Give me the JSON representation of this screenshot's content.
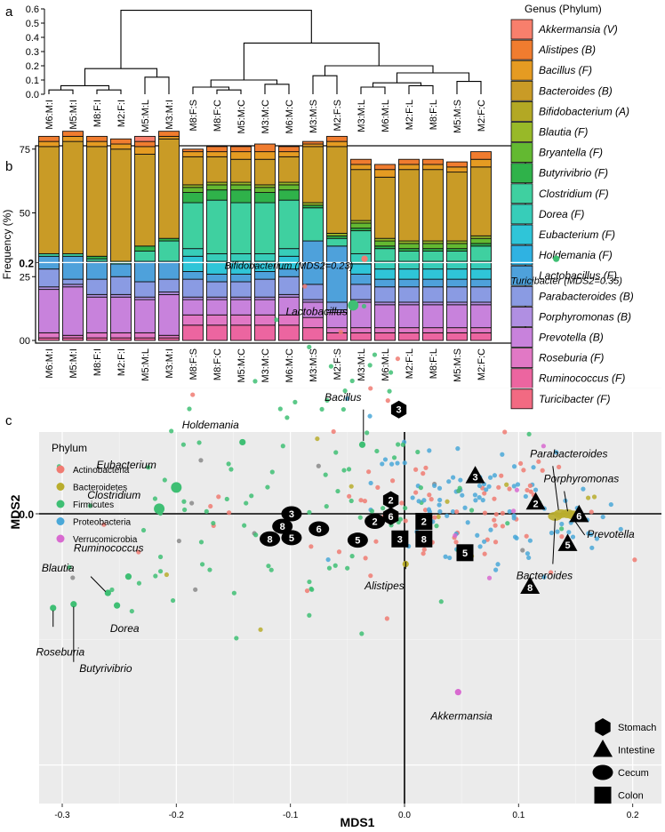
{
  "panel_labels": {
    "a": "a",
    "b": "b",
    "c": "c"
  },
  "chart_data": [
    {
      "type": "dendrogram",
      "panel": "a",
      "ylim": [
        0,
        0.6
      ],
      "yticks": [
        "0.0",
        "0.1",
        "0.2",
        "0.3",
        "0.4",
        "0.5",
        "0.6"
      ],
      "leaves": [
        "M6:M:I",
        "M5:M:I",
        "M8:F:I",
        "M2:F:I",
        "M5:M:L",
        "M3:M:I",
        "M8:F:S",
        "M8:F:C",
        "M5:M:C",
        "M3:M:C",
        "M6:M:C",
        "M3:M:S",
        "M2:F:S",
        "M3:M:L",
        "M6:M:L",
        "M2:F:L",
        "M8:F:L",
        "M5:M:S",
        "M2:F:C"
      ]
    },
    {
      "type": "bar",
      "stacked": true,
      "panel": "b",
      "ylabel": "Frequency (%)",
      "ylim": [
        0,
        80
      ],
      "yticks": [
        "00",
        "25",
        "50",
        "75"
      ],
      "categories": [
        "M6:M:I",
        "M5:M:I",
        "M8:F:I",
        "M2:F:I",
        "M5:M:L",
        "M3:M:I",
        "M8:F:S",
        "M8:F:C",
        "M5:M:C",
        "M3:M:C",
        "M6:M:C",
        "M3:M:S",
        "M2:F:S",
        "M3:M:L",
        "M6:M:L",
        "M2:F:L",
        "M8:F:L",
        "M5:M:S",
        "M2:F:C"
      ],
      "series": [
        {
          "name": "Turicibacter (F)",
          "values": [
            0,
            0,
            0,
            0,
            0,
            0,
            0,
            0,
            0,
            0,
            0,
            0,
            0,
            0,
            0,
            0,
            0,
            0,
            0
          ]
        },
        {
          "name": "Ruminococcus (F)",
          "values": [
            1,
            1,
            1,
            1,
            1,
            1,
            6,
            6,
            6,
            6,
            6,
            5,
            3,
            3,
            3,
            3,
            3,
            3,
            3
          ]
        },
        {
          "name": "Roseburia (F)",
          "values": [
            2,
            1,
            2,
            2,
            2,
            1,
            4,
            4,
            4,
            4,
            4,
            4,
            2,
            2,
            2,
            2,
            2,
            2,
            2
          ]
        },
        {
          "name": "Prevotella (B)",
          "values": [
            17,
            19,
            14,
            14,
            13,
            16,
            6,
            6,
            6,
            6,
            7,
            6,
            6,
            10,
            9,
            9,
            9,
            9,
            9
          ]
        },
        {
          "name": "Porphyromonas (B)",
          "values": [
            1,
            1,
            1,
            1,
            1,
            1,
            1,
            1,
            1,
            1,
            1,
            1,
            1,
            1,
            1,
            1,
            1,
            1,
            1
          ]
        },
        {
          "name": "Parabacteroides (B)",
          "values": [
            7,
            2,
            6,
            7,
            6,
            5,
            7,
            6,
            6,
            7,
            7,
            6,
            3,
            6,
            6,
            6,
            6,
            6,
            6
          ]
        },
        {
          "name": "Lactobacillus (F)",
          "values": [
            5,
            9,
            7,
            5,
            8,
            7,
            3,
            3,
            3,
            3,
            3,
            17,
            22,
            4,
            3,
            3,
            3,
            3,
            3
          ]
        },
        {
          "name": "Holdemania (F)",
          "values": [
            0,
            0,
            0,
            0,
            0,
            0,
            0,
            0,
            0,
            0,
            0,
            0,
            0,
            0,
            0,
            0,
            0,
            0,
            0
          ]
        },
        {
          "name": "Eubacterium (F)",
          "values": [
            0,
            0,
            0,
            0,
            0,
            0,
            6,
            5,
            5,
            4,
            5,
            0,
            0,
            4,
            4,
            4,
            4,
            4,
            4
          ]
        },
        {
          "name": "Dorea (F)",
          "values": [
            0,
            0,
            0,
            0,
            0,
            0,
            3,
            3,
            3,
            3,
            3,
            0,
            0,
            4,
            3,
            3,
            3,
            3,
            3
          ]
        },
        {
          "name": "Clostridium (F)",
          "values": [
            1,
            1,
            1,
            1,
            4,
            8,
            18,
            21,
            20,
            20,
            19,
            13,
            3,
            9,
            5,
            4,
            4,
            4,
            6
          ]
        },
        {
          "name": "Butyrivibrio (F)",
          "values": [
            0,
            0,
            1,
            0,
            2,
            1,
            4,
            4,
            5,
            4,
            4,
            1,
            1,
            1,
            1,
            1,
            1,
            1,
            1
          ]
        },
        {
          "name": "Bryantella (F)",
          "values": [
            0,
            0,
            0,
            0,
            0,
            0,
            2,
            2,
            2,
            2,
            2,
            0,
            0,
            2,
            2,
            2,
            2,
            2,
            2
          ]
        },
        {
          "name": "Blautia (F)",
          "values": [
            0,
            0,
            0,
            0,
            0,
            0,
            1,
            1,
            1,
            1,
            1,
            1,
            1,
            1,
            1,
            1,
            1,
            1,
            1
          ]
        },
        {
          "name": "Bifidobacterium (A)",
          "values": [
            0,
            0,
            0,
            0,
            0,
            0,
            0,
            0,
            0,
            0,
            0,
            0,
            0,
            0,
            0,
            0,
            0,
            0,
            0
          ]
        },
        {
          "name": "Bacteroides (B)",
          "values": [
            42,
            44,
            43,
            44,
            36,
            39,
            11,
            10,
            9,
            10,
            10,
            22,
            34,
            20,
            24,
            28,
            28,
            27,
            27
          ]
        },
        {
          "name": "Bacillus (F)",
          "values": [
            2,
            2,
            2,
            2,
            3,
            1,
            2,
            2,
            3,
            3,
            2,
            1,
            2,
            2,
            3,
            2,
            2,
            2,
            3
          ]
        },
        {
          "name": "Alistipes (B)",
          "values": [
            2,
            2,
            2,
            2,
            2,
            2,
            1,
            2,
            2,
            3,
            2,
            1,
            2,
            2,
            2,
            2,
            2,
            2,
            3
          ]
        },
        {
          "name": "Akkermansia (V)",
          "values": [
            0,
            0,
            0,
            0,
            2,
            0,
            0,
            0,
            0,
            0,
            0,
            0,
            0,
            0,
            0,
            0,
            0,
            0,
            0
          ]
        }
      ]
    },
    {
      "type": "scatter",
      "panel": "c",
      "xlabel": "MDS1",
      "ylabel": "MDS2",
      "xlim": [
        -0.32,
        0.23
      ],
      "ylim": [
        -0.215,
        0.205
      ],
      "xticks": [
        "-0.3",
        "-0.2",
        "-0.1",
        "0.0",
        "0.1",
        "0.2"
      ],
      "yticks": [
        "0.0",
        "0.2"
      ],
      "phylum_legend_title": "Phylum",
      "phyla": [
        {
          "name": "Actinobacteria",
          "color": "#f07b72"
        },
        {
          "name": "Bacteroidetes",
          "color": "#b9ad2d"
        },
        {
          "name": "Firmicutes",
          "color": "#3fbf74"
        },
        {
          "name": "Proteobacteria",
          "color": "#4aa8d8"
        },
        {
          "name": "Verrucomicrobia",
          "color": "#d86ad0"
        }
      ],
      "labeled_points": [
        {
          "label": "Bifidobacterium (MDS2=0.23)",
          "x": -0.035,
          "y": 0.203,
          "phylum": "Actinobacteria"
        },
        {
          "label": "Turicibacter (MDS2=0.35)",
          "x": 0.133,
          "y": 0.203,
          "phylum": "Firmicutes"
        },
        {
          "label": "Lactobacillus",
          "x": -0.045,
          "y": 0.166,
          "phylum": "Firmicutes"
        },
        {
          "label": "Bacillus",
          "x": -0.037,
          "y": 0.055,
          "phylum": "Firmicutes"
        },
        {
          "label": "Holdemania",
          "x": -0.142,
          "y": 0.057,
          "phylum": "Firmicutes"
        },
        {
          "label": "Eubacterium",
          "x": -0.2,
          "y": 0.021,
          "phylum": "Firmicutes"
        },
        {
          "label": "Clostridium",
          "x": -0.215,
          "y": 0.004,
          "phylum": "Firmicutes"
        },
        {
          "label": "Ruminococcus",
          "x": -0.242,
          "y": -0.05,
          "phylum": "Firmicutes"
        },
        {
          "label": "Blautia",
          "x": -0.26,
          "y": -0.063,
          "phylum": "Firmicutes"
        },
        {
          "label": "Dorea",
          "x": -0.252,
          "y": -0.073,
          "phylum": "Firmicutes"
        },
        {
          "label": "Roseburia",
          "x": -0.308,
          "y": -0.075,
          "phylum": "Firmicutes"
        },
        {
          "label": "Butyrivibrio",
          "x": -0.29,
          "y": -0.072,
          "phylum": "Firmicutes"
        },
        {
          "label": "Alistipes",
          "x": 0.001,
          "y": -0.04,
          "phylum": "Bacteroidetes"
        },
        {
          "label": "Akkermansia",
          "x": 0.047,
          "y": -0.142,
          "phylum": "Verrucomicrobia"
        },
        {
          "label": "Parabacteroides",
          "x": 0.137,
          "y": 0.0,
          "phylum": "Bacteroidetes"
        },
        {
          "label": "Porphyromonas",
          "x": 0.143,
          "y": 0.0,
          "phylum": "Bacteroidetes"
        },
        {
          "label": "Prevotella",
          "x": 0.148,
          "y": -0.001,
          "phylum": "Bacteroidetes"
        },
        {
          "label": "Bacteroides",
          "x": 0.132,
          "y": -0.002,
          "phylum": "Bacteroidetes"
        }
      ],
      "sample_legend": [
        {
          "shape": "hexagon",
          "label": "Stomach"
        },
        {
          "shape": "triangle",
          "label": "Intestine"
        },
        {
          "shape": "ellipse",
          "label": "Cecum"
        },
        {
          "shape": "square",
          "label": "Colon"
        }
      ],
      "samples": [
        {
          "mouse": "3",
          "site": "Stomach",
          "x": -0.005,
          "y": 0.083
        },
        {
          "mouse": "2",
          "site": "Stomach",
          "x": -0.012,
          "y": 0.011
        },
        {
          "mouse": "6",
          "site": "Stomach",
          "x": -0.012,
          "y": -0.002
        },
        {
          "mouse": "3",
          "site": "Intestine",
          "x": 0.062,
          "y": 0.03
        },
        {
          "mouse": "2",
          "site": "Intestine",
          "x": 0.115,
          "y": 0.009
        },
        {
          "mouse": "6",
          "site": "Intestine",
          "x": 0.153,
          "y": -0.001
        },
        {
          "mouse": "5",
          "site": "Intestine",
          "x": 0.143,
          "y": -0.024
        },
        {
          "mouse": "8",
          "site": "Intestine",
          "x": 0.11,
          "y": -0.058
        },
        {
          "mouse": "3",
          "site": "Cecum",
          "x": -0.099,
          "y": 0.0
        },
        {
          "mouse": "8",
          "site": "Cecum",
          "x": -0.107,
          "y": -0.01
        },
        {
          "mouse": "5",
          "site": "Cecum",
          "x": -0.099,
          "y": -0.019
        },
        {
          "mouse": "8",
          "site": "Cecum",
          "x": -0.118,
          "y": -0.02
        },
        {
          "mouse": "6",
          "site": "Cecum",
          "x": -0.075,
          "y": -0.012
        },
        {
          "mouse": "2",
          "site": "Cecum",
          "x": -0.026,
          "y": -0.006
        },
        {
          "mouse": "5",
          "site": "Cecum",
          "x": -0.041,
          "y": -0.021
        },
        {
          "mouse": "2",
          "site": "Colon",
          "x": 0.017,
          "y": -0.006
        },
        {
          "mouse": "3",
          "site": "Colon",
          "x": -0.004,
          "y": -0.02
        },
        {
          "mouse": "8",
          "site": "Colon",
          "x": 0.017,
          "y": -0.02
        },
        {
          "mouse": "5",
          "site": "Colon",
          "x": 0.053,
          "y": -0.031
        }
      ]
    }
  ]
}
